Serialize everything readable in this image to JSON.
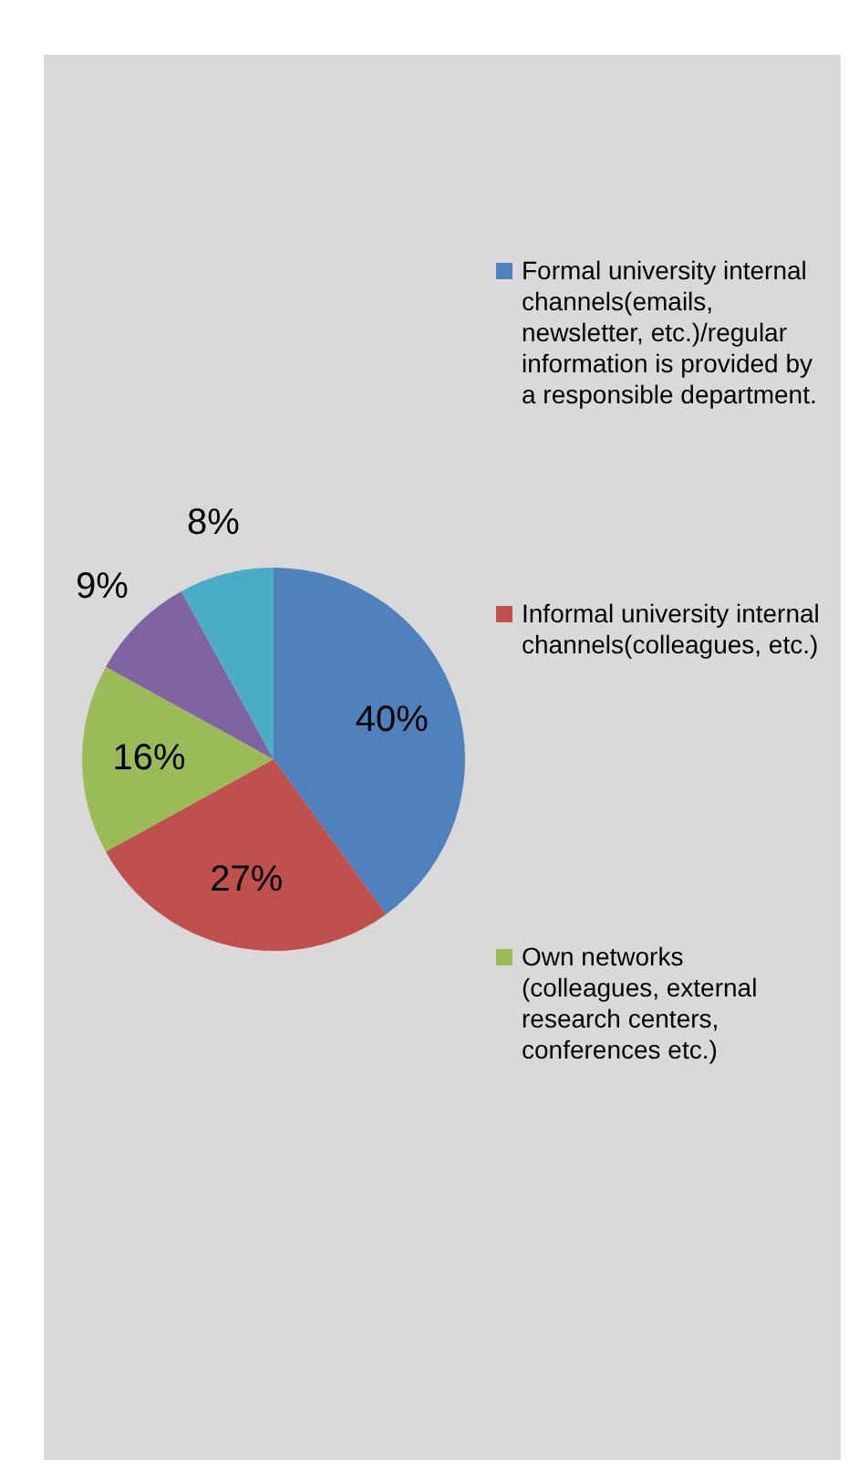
{
  "chart_data": {
    "type": "pie",
    "categories": [
      "Formal university internal channels(emails, newsletter, etc.)/regular information is provided by a responsible department.",
      "Informal university internal channels(colleagues, etc.)",
      "Own networks (colleagues, external research centers, conferences etc.)",
      null,
      null
    ],
    "values": [
      40,
      27,
      16,
      9,
      8
    ],
    "colors": [
      "#4f81bd",
      "#c0504d",
      "#9bbb59",
      "#8064a2",
      "#4bacc6"
    ],
    "value_labels": [
      "40%",
      "27%",
      "16%",
      "9%",
      "8%"
    ],
    "legend": "right"
  }
}
